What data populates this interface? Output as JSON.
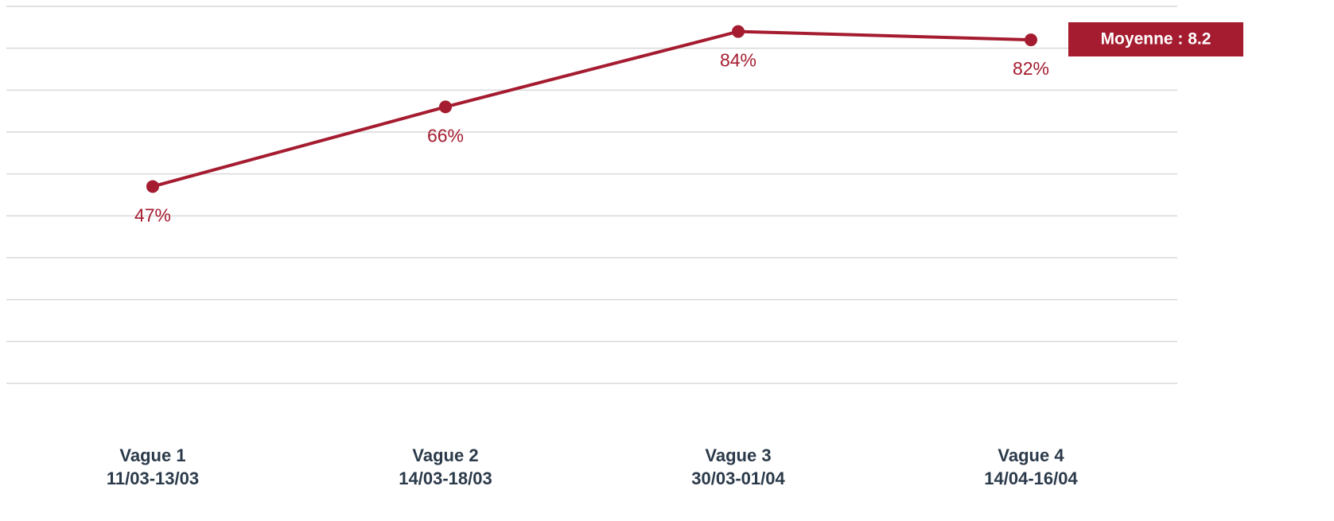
{
  "chart_data": {
    "type": "line",
    "categories": [
      [
        "Vague 1",
        "11/03-13/03"
      ],
      [
        "Vague 2",
        "14/03-18/03"
      ],
      [
        "Vague 3",
        "30/03-01/04"
      ],
      [
        "Vague 4",
        "14/04-16/04"
      ]
    ],
    "series": [
      {
        "color": "#a51c30",
        "values": [
          47,
          66,
          84,
          82
        ],
        "value_labels": [
          "47%",
          "66%",
          "84%",
          "82%"
        ]
      }
    ],
    "ylim": [
      0,
      90
    ],
    "yticks": [
      0,
      10,
      20,
      30,
      40,
      50,
      60,
      70,
      80,
      90
    ],
    "grid": true,
    "annotation": "Moyenne : 8.2"
  }
}
